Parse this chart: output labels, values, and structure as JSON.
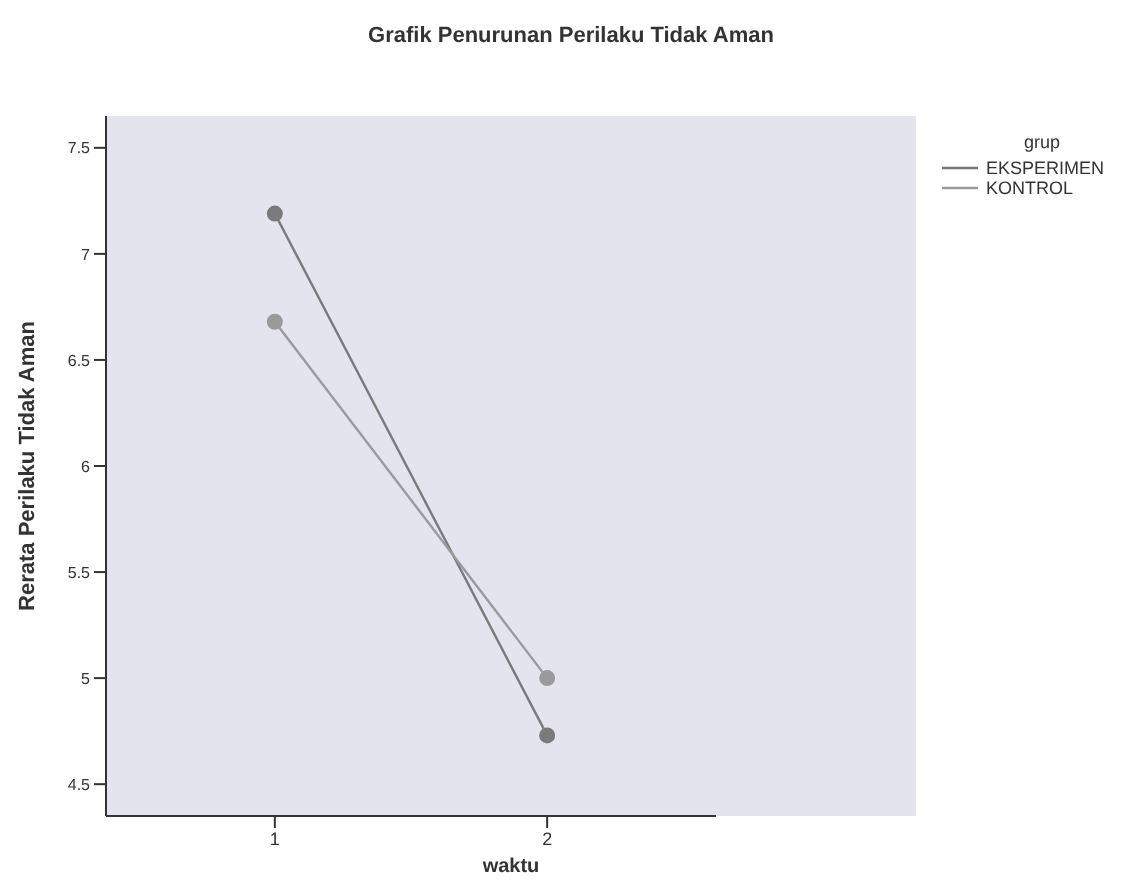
{
  "chart_data": {
    "type": "line",
    "title": "Grafik Penurunan Perilaku Tidak Aman",
    "xlabel": "waktu",
    "ylabel": "Rerata Perilaku Tidak Aman",
    "legend_title": "grup",
    "x": [
      1,
      2
    ],
    "xlim": [
      0.38,
      2.62
    ],
    "xticks": [
      1,
      2
    ],
    "ylim": [
      4.35,
      7.65
    ],
    "yticks": [
      4.5,
      5,
      5.5,
      6,
      6.5,
      7,
      7.5
    ],
    "series": [
      {
        "name": "EKSPERIMEN",
        "color": "#7a7a7a",
        "values": [
          7.19,
          4.73
        ]
      },
      {
        "name": "KONTROL",
        "color": "#9a9a9a",
        "values": [
          6.68,
          5.0
        ]
      }
    ],
    "marker": "circle",
    "line_style": "solid",
    "grid": false,
    "legend": "top right"
  }
}
